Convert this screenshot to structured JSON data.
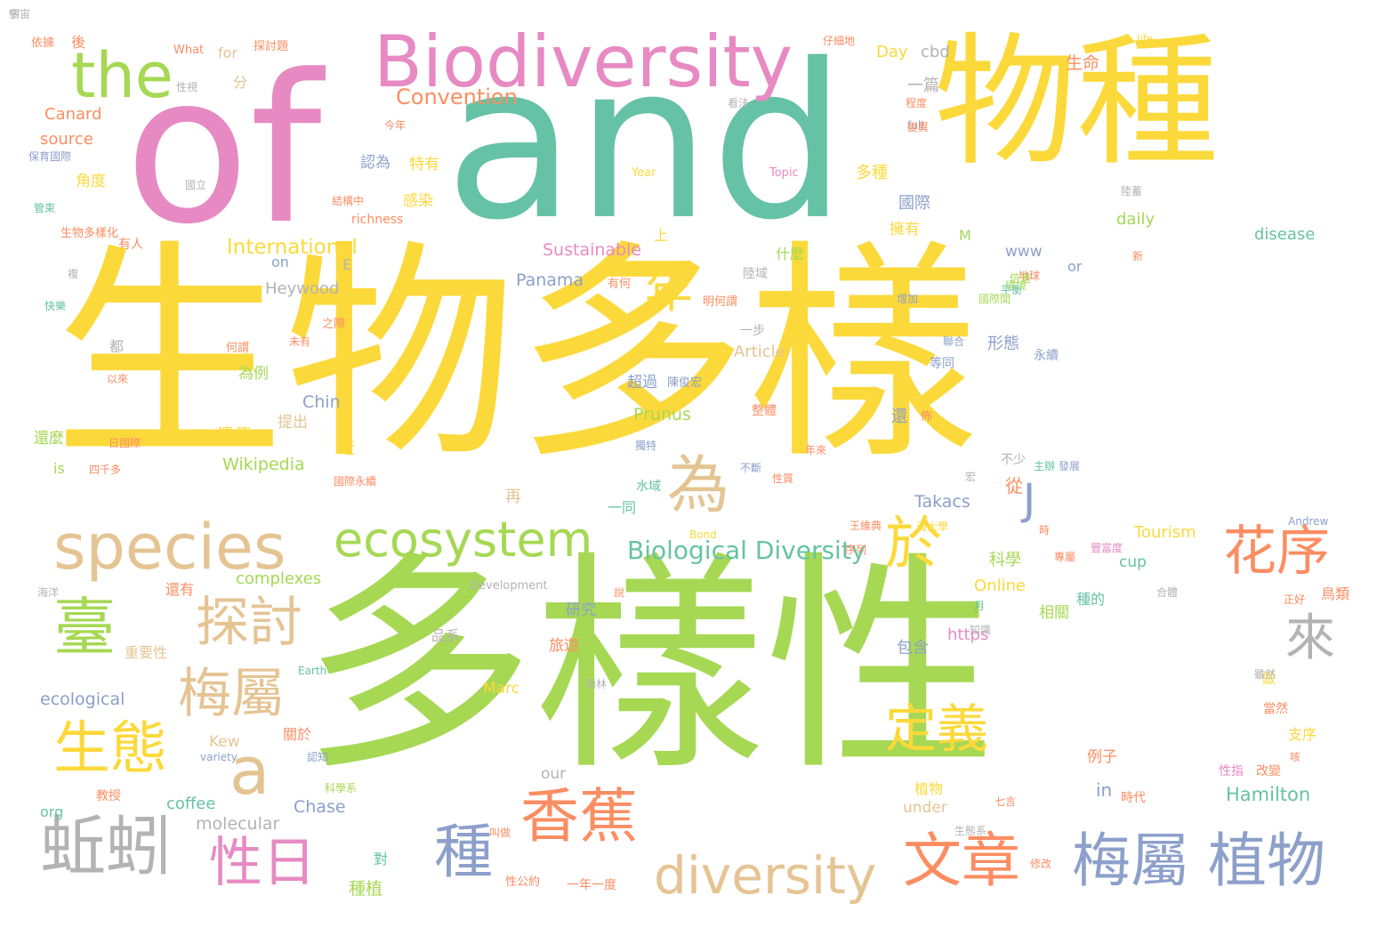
{
  "palette": {
    "yellow": "#fcd93a",
    "green": "#a6d854",
    "pink": "#e78ac3",
    "teal": "#66c2a5",
    "orange": "#fc8d62",
    "blue": "#8da0cb",
    "tan": "#e5c494",
    "gray": "#b3b3b3"
  },
  "words": [
    {
      "text": "of"
    },
    {
      "text": "and"
    },
    {
      "text": "生物多樣"
    },
    {
      "text": "多樣性"
    },
    {
      "text": "物種"
    },
    {
      "text": "Biodiversity"
    },
    {
      "text": "the"
    },
    {
      "text": "species"
    },
    {
      "text": "ecosystem"
    },
    {
      "text": "為"
    },
    {
      "text": "於"
    },
    {
      "text": "年"
    },
    {
      "text": "花序"
    },
    {
      "text": "臺"
    },
    {
      "text": "探討"
    },
    {
      "text": "梅屬"
    },
    {
      "text": "來"
    },
    {
      "text": "生態"
    },
    {
      "text": "a"
    },
    {
      "text": "定義"
    },
    {
      "text": "蚯蚓"
    },
    {
      "text": "性日"
    },
    {
      "text": "香蕉"
    },
    {
      "text": "種"
    },
    {
      "text": "diversity"
    },
    {
      "text": "文章"
    },
    {
      "text": "梅屬 植物"
    },
    {
      "text": "J"
    },
    {
      "text": "Biological Diversity"
    },
    {
      "text": "Convention"
    },
    {
      "text": "International"
    },
    {
      "text": "Sustainable"
    },
    {
      "text": "Panama"
    },
    {
      "text": "Heywood"
    },
    {
      "text": "Canard"
    },
    {
      "text": "source"
    },
    {
      "text": "Wikipedia"
    },
    {
      "text": "Prunus"
    },
    {
      "text": "Chin"
    },
    {
      "text": "Takacs"
    },
    {
      "text": "Hamilton"
    },
    {
      "text": "Tourism"
    },
    {
      "text": "complexes"
    },
    {
      "text": "ecological"
    },
    {
      "text": "coffee"
    },
    {
      "text": "Chase"
    },
    {
      "text": "molecular"
    },
    {
      "text": "Online"
    },
    {
      "text": "https"
    },
    {
      "text": "Article"
    },
    {
      "text": "disease"
    },
    {
      "text": "daily"
    },
    {
      "text": "cbd"
    },
    {
      "text": "Day"
    },
    {
      "text": "for"
    },
    {
      "text": "What"
    },
    {
      "text": "life"
    },
    {
      "text": "full"
    },
    {
      "text": "Topic"
    },
    {
      "text": "Year"
    },
    {
      "text": "richness"
    },
    {
      "text": "M"
    },
    {
      "text": "www"
    },
    {
      "text": "or"
    },
    {
      "text": "on"
    },
    {
      "text": "E"
    },
    {
      "text": "is"
    },
    {
      "text": "org"
    },
    {
      "text": "Kew"
    },
    {
      "text": "variety"
    },
    {
      "text": "our"
    },
    {
      "text": "under"
    },
    {
      "text": "in"
    },
    {
      "text": "cup"
    },
    {
      "text": "Marc"
    },
    {
      "text": "Earth"
    },
    {
      "text": "Andrew"
    },
    {
      "text": "Bond"
    },
    {
      "text": "Development"
    },
    {
      "text": "生命"
    },
    {
      "text": "一篇"
    },
    {
      "text": "分"
    },
    {
      "text": "認為"
    },
    {
      "text": "特有"
    },
    {
      "text": "角度"
    },
    {
      "text": "感染"
    },
    {
      "text": "國際"
    },
    {
      "text": "多種"
    },
    {
      "text": "擁有"
    },
    {
      "text": "上"
    },
    {
      "text": "什麼"
    },
    {
      "text": "形態"
    },
    {
      "text": "永續"
    },
    {
      "text": "為例"
    },
    {
      "text": "超過"
    },
    {
      "text": "陳俊宏"
    },
    {
      "text": "遺傳"
    },
    {
      "text": "提出"
    },
    {
      "text": "還麼"
    },
    {
      "text": "近"
    },
    {
      "text": "從"
    },
    {
      "text": "再"
    },
    {
      "text": "一同"
    },
    {
      "text": "科學"
    },
    {
      "text": "研究"
    },
    {
      "text": "相關"
    },
    {
      "text": "包含"
    },
    {
      "text": "旅遊"
    },
    {
      "text": "種的"
    },
    {
      "text": "品系"
    },
    {
      "text": "重要性"
    },
    {
      "text": "做"
    },
    {
      "text": "當然"
    },
    {
      "text": "支序"
    },
    {
      "text": "例子"
    },
    {
      "text": "植物"
    },
    {
      "text": "對"
    },
    {
      "text": "種植"
    },
    {
      "text": "一年一度"
    },
    {
      "text": "性公約"
    },
    {
      "text": "還有"
    },
    {
      "text": "關於"
    },
    {
      "text": "認知"
    },
    {
      "text": "教授"
    },
    {
      "text": "科學系"
    },
    {
      "text": "生態系"
    },
    {
      "text": "修改"
    },
    {
      "text": "叫做"
    },
    {
      "text": "時代"
    },
    {
      "text": "七言"
    },
    {
      "text": "改變"
    },
    {
      "text": "性指"
    },
    {
      "text": "水域"
    },
    {
      "text": "不少"
    },
    {
      "text": "主辦"
    },
    {
      "text": "依據"
    },
    {
      "text": "後"
    },
    {
      "text": "探討題"
    },
    {
      "text": "仔細地"
    },
    {
      "text": "性視"
    },
    {
      "text": "今年"
    },
    {
      "text": "看法"
    },
    {
      "text": "保育國際"
    },
    {
      "text": "國立"
    },
    {
      "text": "結構中"
    },
    {
      "text": "生物多樣化"
    },
    {
      "text": "管束"
    },
    {
      "text": "有人"
    },
    {
      "text": "複"
    },
    {
      "text": "快樂"
    },
    {
      "text": "都"
    },
    {
      "text": "以來"
    },
    {
      "text": "何謂"
    },
    {
      "text": "之際"
    },
    {
      "text": "未有"
    },
    {
      "text": "日國際"
    },
    {
      "text": "四千多"
    },
    {
      "text": "國際永續"
    },
    {
      "text": "有何"
    },
    {
      "text": "明何謂"
    },
    {
      "text": "一步"
    },
    {
      "text": "等同"
    },
    {
      "text": "聯合"
    },
    {
      "text": "整體"
    },
    {
      "text": "還"
    },
    {
      "text": "佈"
    },
    {
      "text": "不斷"
    },
    {
      "text": "性質"
    },
    {
      "text": "年來"
    },
    {
      "text": "獨特"
    },
    {
      "text": "宏"
    },
    {
      "text": "發展"
    },
    {
      "text": "王維典"
    },
    {
      "text": "海大學"
    },
    {
      "text": "豐富度"
    },
    {
      "text": "時"
    },
    {
      "text": "序列"
    },
    {
      "text": "海洋"
    },
    {
      "text": "合體"
    },
    {
      "text": "月"
    },
    {
      "text": "知識"
    },
    {
      "text": "雖然"
    },
    {
      "text": "咳"
    },
    {
      "text": "專屬"
    },
    {
      "text": "雨林"
    },
    {
      "text": "正好"
    },
    {
      "text": "鳥類"
    },
    {
      "text": "說"
    },
    {
      "text": "增加"
    },
    {
      "text": "陸域"
    },
    {
      "text": "陸蓄"
    },
    {
      "text": "新"
    },
    {
      "text": "地球"
    },
    {
      "text": "倍速"
    },
    {
      "text": "環境"
    },
    {
      "text": "平衡"
    },
    {
      "text": "變異"
    },
    {
      "text": "程度"
    },
    {
      "text": "國際間"
    },
    {
      "text": "宇宙"
    },
    {
      "text": "個"
    }
  ]
}
